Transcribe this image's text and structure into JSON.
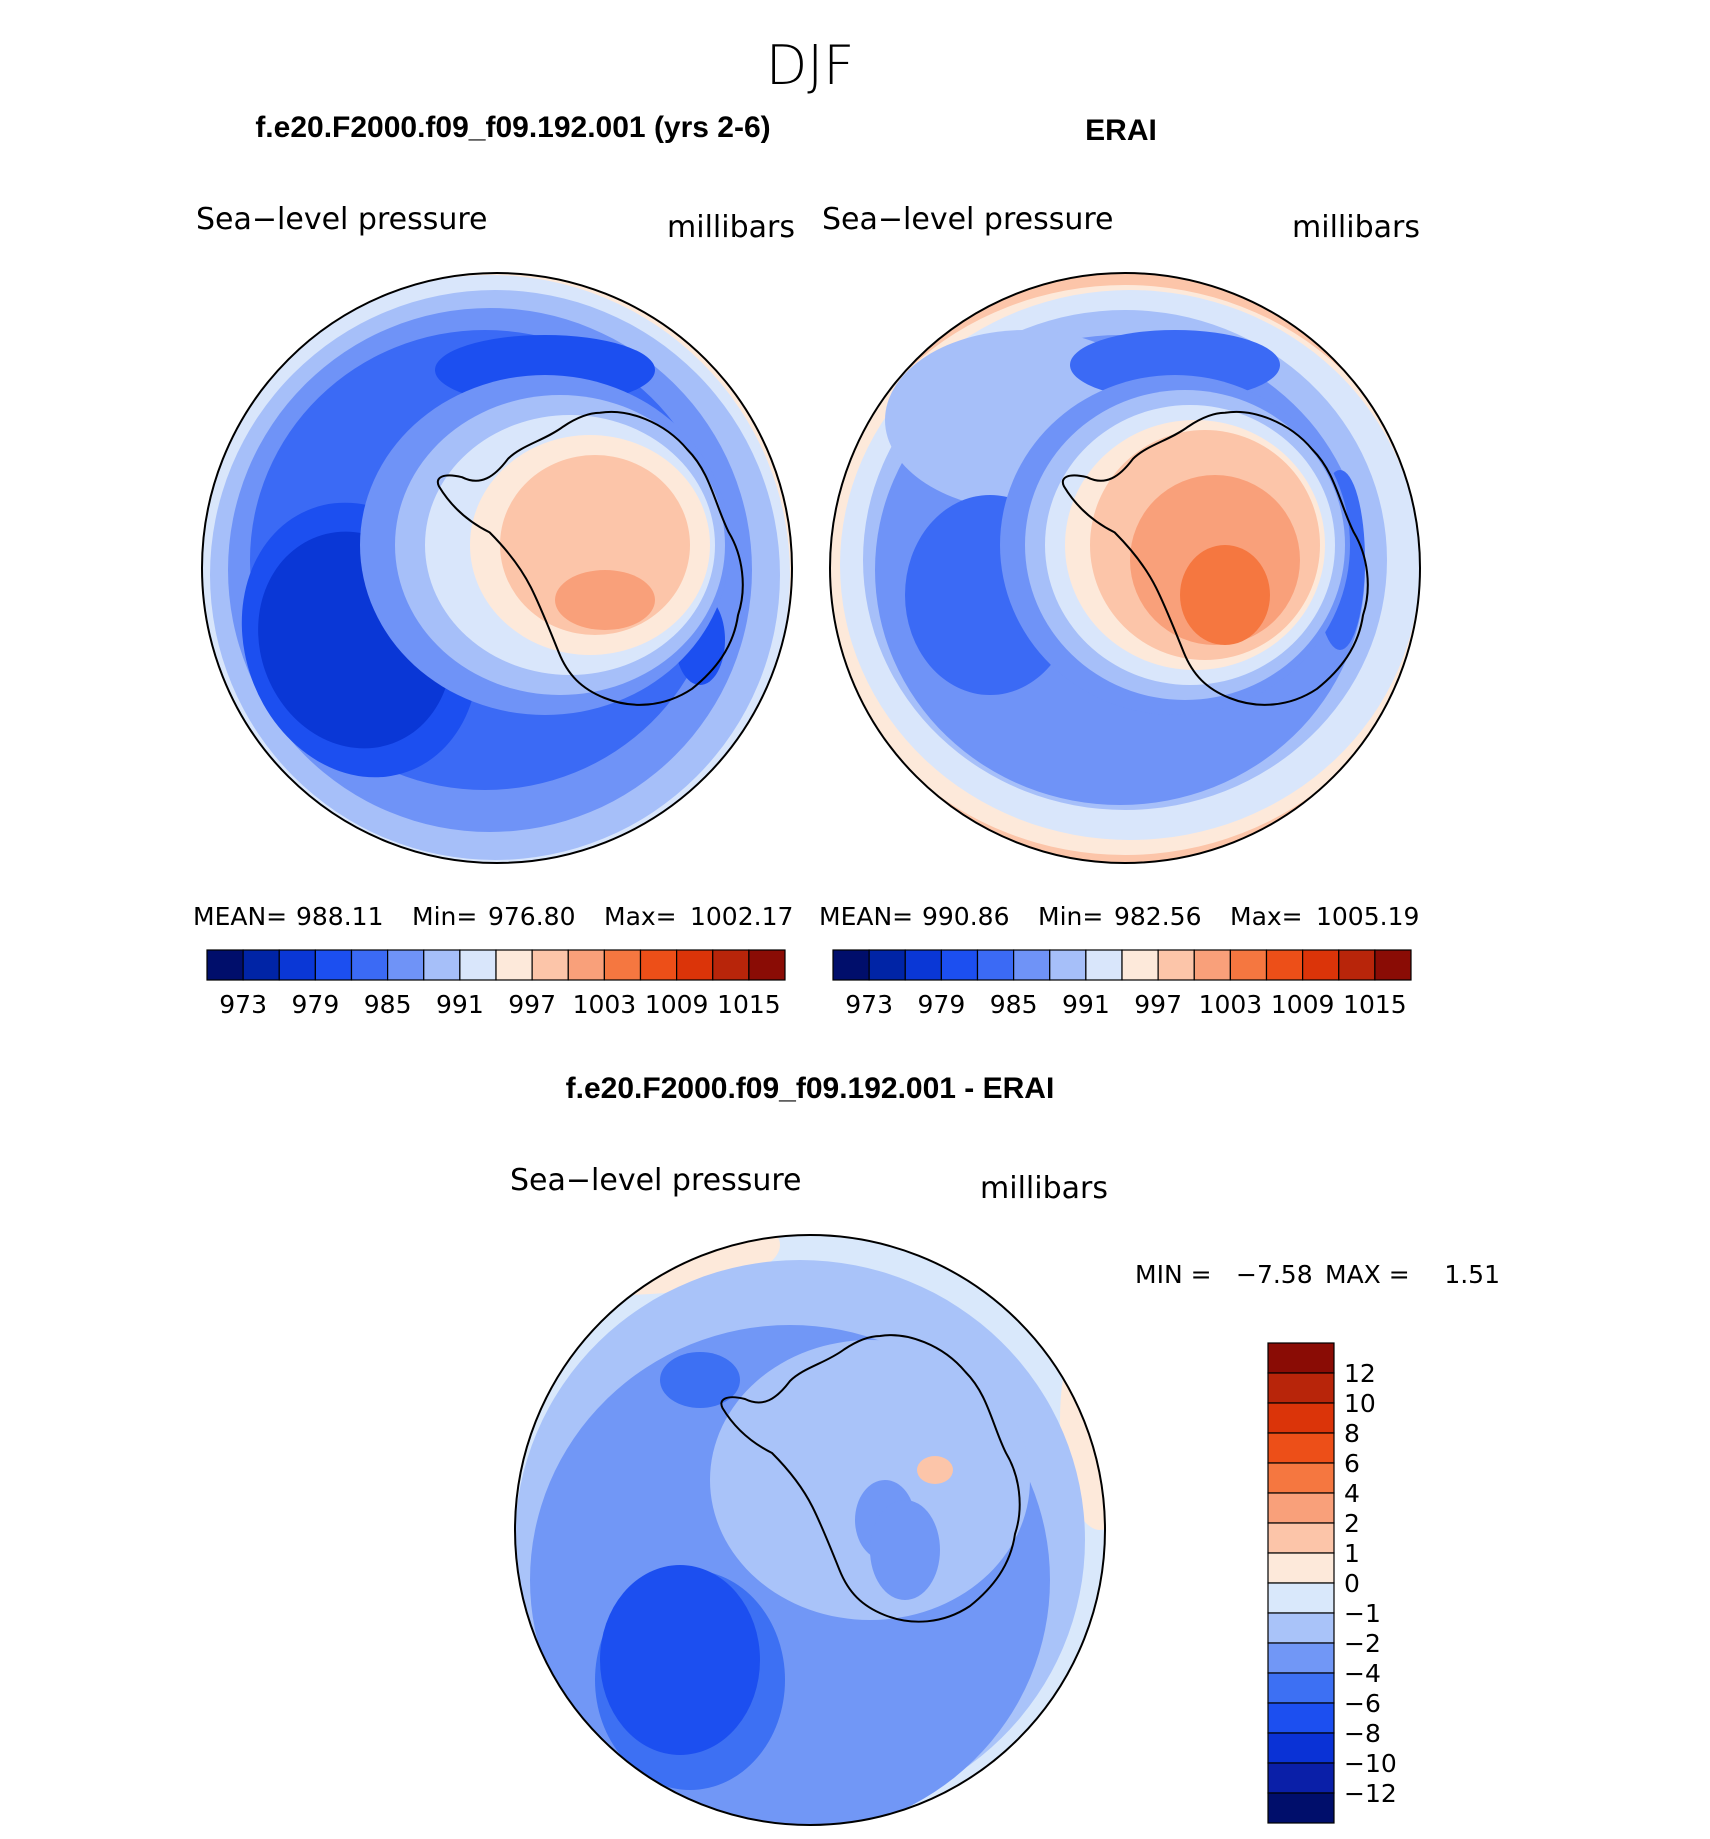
{
  "figure": {
    "season": "DJF"
  },
  "colors": {
    "scale15": [
      "#000e6b",
      "#0024a6",
      "#0a37d6",
      "#1c4ff0",
      "#3b6af5",
      "#6f93f7",
      "#a6bff9",
      "#d9e6fb",
      "#fde9da",
      "#fcc5a9",
      "#f9a07a",
      "#f57740",
      "#ed4f18",
      "#db3409",
      "#b8250a",
      "#8a0c05"
    ],
    "diff15": [
      "#000e6b",
      "#0a1fa8",
      "#0a32d6",
      "#1c4ff0",
      "#3d70f3",
      "#7197f6",
      "#a9c3f9",
      "#d9e8fb",
      "#fde9da",
      "#fcc5a9",
      "#f9a07a",
      "#f57740",
      "#ed4f18",
      "#db3409",
      "#b8250a",
      "#8a0c05"
    ],
    "outline": "#000000"
  },
  "chart_data": [
    {
      "type": "heatmap",
      "projection": "south-polar-stereographic",
      "title": "f.e20.F2000.f09_f09.192.001 (yrs 2-6)",
      "left_label": "Sea−level pressure",
      "right_label": "millibars",
      "stats": {
        "mean_label": "MEAN=",
        "mean": "988.11",
        "min_label": "Min=",
        "min": "976.80",
        "max_label": "Max=",
        "max": "1002.17"
      },
      "colorbar": {
        "orientation": "horizontal",
        "levels": [
          970,
          973,
          976,
          979,
          982,
          985,
          988,
          991,
          994,
          997,
          1000,
          1003,
          1006,
          1009,
          1012,
          1015
        ],
        "tick_labels": [
          "973",
          "979",
          "985",
          "991",
          "997",
          "1003",
          "1009",
          "1015"
        ]
      },
      "field_description": "Low pressure belt (~976-985 mb) around Antarctica, deepest in Amundsen-Bellingshausen Sea; high pressure (~997-1003 mb) over East Antarctic plateau"
    },
    {
      "type": "heatmap",
      "projection": "south-polar-stereographic",
      "title": "ERAI",
      "left_label": "Sea−level pressure",
      "right_label": "millibars",
      "stats": {
        "mean_label": "MEAN=",
        "mean": "990.86",
        "min_label": "Min=",
        "min": "982.56",
        "max_label": "Max=",
        "max": "1005.19"
      },
      "colorbar": {
        "orientation": "horizontal",
        "levels": [
          970,
          973,
          976,
          979,
          982,
          985,
          988,
          991,
          994,
          997,
          1000,
          1003,
          1006,
          1009,
          1012,
          1015
        ],
        "tick_labels": [
          "973",
          "979",
          "985",
          "991",
          "997",
          "1003",
          "1009",
          "1015"
        ]
      },
      "field_description": "Weaker circumpolar low (~982-988 mb); stronger high (~1003-1006 mb) over East Antarctica"
    },
    {
      "type": "heatmap",
      "projection": "south-polar-stereographic",
      "title": "f.e20.F2000.f09_f09.192.001 - ERAI",
      "left_label": "Sea−level pressure",
      "right_label": "millibars",
      "stats": {
        "min_label": "MIN =",
        "min": "−7.58",
        "max_label": "MAX =",
        "max": "1.51"
      },
      "colorbar": {
        "orientation": "vertical",
        "levels": [
          -14,
          -12,
          -10,
          -8,
          -6,
          -4,
          -2,
          -1,
          0,
          1,
          2,
          4,
          6,
          8,
          10,
          12,
          14
        ],
        "tick_labels": [
          "12",
          "10",
          "8",
          "6",
          "4",
          "2",
          "1",
          "0",
          "−1",
          "−2",
          "−4",
          "−6",
          "−8",
          "−10",
          "−12"
        ]
      },
      "field_description": "Model minus ERAI: mostly negative (-1 to -8 mb), strongest in Amundsen Sea; slight positive near coasts and northern rim"
    }
  ]
}
